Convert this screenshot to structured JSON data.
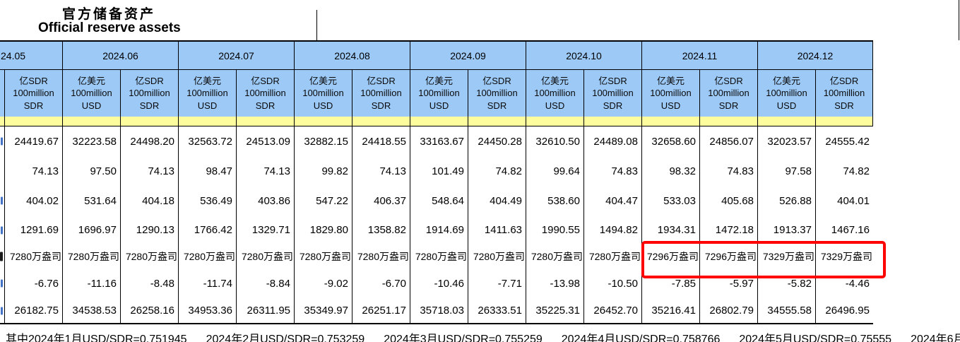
{
  "title": {
    "zh": "官方储备资产",
    "en": "Official reserve assets"
  },
  "unit_headers": {
    "usd": [
      "亿美元",
      "100million",
      "USD"
    ],
    "sdr": [
      "亿SDR",
      "100million",
      "SDR"
    ]
  },
  "months": [
    {
      "label": "24.05",
      "clipped": true,
      "cols": [
        "sdr"
      ]
    },
    {
      "label": "2024.06",
      "cols": [
        "usd",
        "sdr"
      ]
    },
    {
      "label": "2024.07",
      "cols": [
        "usd",
        "sdr"
      ]
    },
    {
      "label": "2024.08",
      "cols": [
        "usd",
        "sdr"
      ]
    },
    {
      "label": "2024.09",
      "cols": [
        "usd",
        "sdr"
      ]
    },
    {
      "label": "2024.10",
      "cols": [
        "usd",
        "sdr"
      ]
    },
    {
      "label": "2024.11",
      "cols": [
        "usd",
        "sdr"
      ]
    },
    {
      "label": "2024.12",
      "cols": [
        "usd",
        "sdr"
      ]
    }
  ],
  "rows": [
    {
      "name": "foreign-exchange-reserves",
      "values": [
        "24419.67",
        "32223.58",
        "24498.20",
        "32563.72",
        "24513.09",
        "32882.15",
        "24418.55",
        "33163.67",
        "24450.28",
        "32610.50",
        "24489.08",
        "32658.60",
        "24856.07",
        "32023.57",
        "24555.42"
      ]
    },
    {
      "name": "imf-reserve-position",
      "values": [
        "74.13",
        "97.50",
        "74.13",
        "98.47",
        "74.13",
        "99.82",
        "74.13",
        "101.49",
        "74.82",
        "99.64",
        "74.83",
        "98.32",
        "74.83",
        "97.58",
        "74.82"
      ]
    },
    {
      "name": "special-drawing-rights",
      "values": [
        "404.02",
        "531.64",
        "404.18",
        "536.49",
        "403.86",
        "547.22",
        "406.37",
        "548.64",
        "404.49",
        "538.60",
        "404.47",
        "533.03",
        "405.68",
        "526.88",
        "404.01"
      ]
    },
    {
      "name": "gold-value",
      "values": [
        "1291.69",
        "1696.97",
        "1290.13",
        "1766.42",
        "1329.71",
        "1829.80",
        "1358.82",
        "1914.69",
        "1411.63",
        "1990.55",
        "1494.82",
        "1934.31",
        "1472.18",
        "1913.37",
        "1467.16"
      ]
    },
    {
      "name": "gold-million-ounces",
      "values": [
        "7280万盎司",
        "7280万盎司",
        "7280万盎司",
        "7280万盎司",
        "7280万盎司",
        "7280万盎司",
        "7280万盎司",
        "7280万盎司",
        "7280万盎司",
        "7280万盎司",
        "7280万盎司",
        "7296万盎司",
        "7296万盎司",
        "7329万盎司",
        "7329万盎司"
      ]
    },
    {
      "name": "other-reserve-assets",
      "values": [
        "-6.76",
        "-11.16",
        "-8.48",
        "-11.74",
        "-8.84",
        "-9.02",
        "-6.70",
        "-10.46",
        "-7.71",
        "-13.98",
        "-10.50",
        "-7.85",
        "-5.97",
        "-5.82",
        "-4.46"
      ]
    },
    {
      "name": "total-official-reserve-assets",
      "values": [
        "26182.75",
        "34538.53",
        "26258.16",
        "34953.36",
        "26311.95",
        "35349.97",
        "26251.17",
        "35718.03",
        "26333.51",
        "35225.31",
        "26452.70",
        "35216.41",
        "26802.79",
        "34555.58",
        "26496.95"
      ]
    }
  ],
  "left_edge_fragments": [
    {
      "row": 0,
      "kind": "digit"
    },
    {
      "row": 2,
      "kind": "digit"
    },
    {
      "row": 3,
      "kind": "digit"
    },
    {
      "row": 4,
      "kind": "cjk"
    },
    {
      "row": 5,
      "kind": "digit"
    },
    {
      "row": 6,
      "kind": "digit"
    }
  ],
  "highlight": {
    "row": 4,
    "col_start": 11,
    "col_end": 14,
    "color": "#FF0000"
  },
  "footnote_entries": [
    "其中2024年1月USD/SDR=0.751945",
    "2024年2月USD/SDR=0.753259",
    "2024年3月USD/SDR=0.755259",
    "2024年4月USD/SDR=0.758766",
    "2024年5月USD/SDR=0.75555",
    "2024年6月"
  ],
  "colors": {
    "header_blue": "#9DC9F7",
    "band_yellow": "#FDFD9E",
    "border": "#000000",
    "fragment_blue": "#4472C4",
    "highlight_red": "#FF0000"
  }
}
